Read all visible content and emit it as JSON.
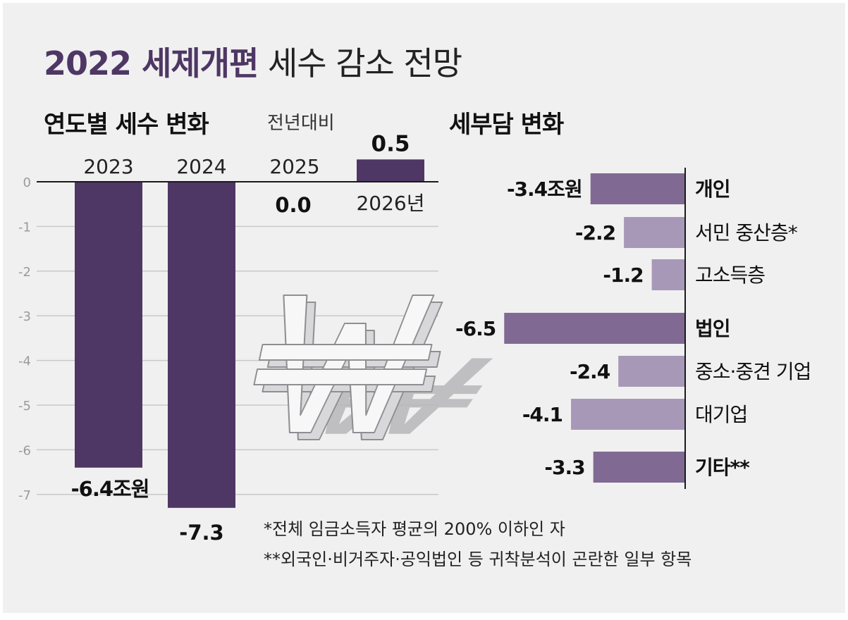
{
  "title": {
    "highlight": "2022 세제개편",
    "rest": "세수 감소 전망"
  },
  "left_heading": "연도별 세수 변화",
  "yoy_label": "전년대비",
  "right_heading": "세부담 변화",
  "footnotes": [
    "*전체 임금소득자 평균의 200% 이하인 자",
    "**외국인·비거주자·공익법인 등 귀착분석이 곤란한 일부 항목"
  ],
  "colors": {
    "primary": "#4e3764",
    "secondary": "#806a93",
    "tertiary": "#a898b8",
    "grid": "#c9c9c9",
    "axis": "#1a1a1a",
    "tick": "#9a9a9a",
    "background": "#f1f0f1"
  },
  "decoration": {
    "icon": "won-symbol-icon"
  },
  "chart_data": [
    {
      "type": "bar",
      "title": "연도별 세수 변화",
      "subtitle": "전년대비",
      "categories": [
        "2023",
        "2024",
        "2025",
        "2026년"
      ],
      "values": [
        -6.4,
        -7.3,
        0.0,
        0.5
      ],
      "value_labels": [
        "-6.4조원",
        "-7.3",
        "0.0",
        "0.5"
      ],
      "yticks": [
        "0",
        "-1",
        "-2",
        "-3",
        "-4",
        "-5",
        "-6",
        "-7"
      ],
      "ylim": [
        -7.3,
        0.5
      ],
      "unit": "조원",
      "grid": true
    },
    {
      "type": "bar",
      "orientation": "horizontal",
      "title": "세부담 변화",
      "items": [
        {
          "label": "개인",
          "value": -3.4,
          "value_label": "-3.4조원",
          "level": "group"
        },
        {
          "label": "서민 중산층*",
          "value": -2.2,
          "value_label": "-2.2",
          "level": "sub"
        },
        {
          "label": "고소득층",
          "value": -1.2,
          "value_label": "-1.2",
          "level": "sub"
        },
        {
          "label": "법인",
          "value": -6.5,
          "value_label": "-6.5",
          "level": "group"
        },
        {
          "label": "중소·중견 기업",
          "value": -2.4,
          "value_label": "-2.4",
          "level": "sub"
        },
        {
          "label": "대기업",
          "value": -4.1,
          "value_label": "-4.1",
          "level": "sub"
        },
        {
          "label": "기타**",
          "value": -3.3,
          "value_label": "-3.3",
          "level": "group"
        }
      ],
      "unit": "조원"
    }
  ]
}
